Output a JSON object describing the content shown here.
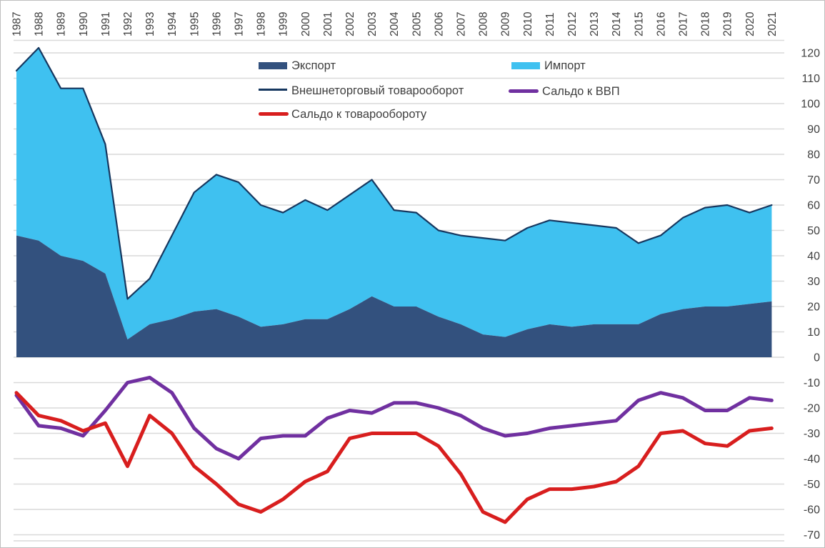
{
  "chart_data": {
    "type": "area",
    "title": "",
    "x": [
      "1987",
      "1988",
      "1989",
      "1990",
      "1991",
      "1992",
      "1993",
      "1994",
      "1995",
      "1996",
      "1997",
      "1998",
      "1999",
      "2000",
      "2001",
      "2002",
      "2003",
      "2004",
      "2005",
      "2006",
      "2007",
      "2008",
      "2009",
      "2010",
      "2011",
      "2012",
      "2013",
      "2014",
      "2015",
      "2016",
      "2017",
      "2018",
      "2019",
      "2020",
      "2021"
    ],
    "series": [
      {
        "name": "Экспорт",
        "type": "area-stacked",
        "color": "#33517e",
        "values": [
          48,
          46,
          40,
          38,
          33,
          7,
          13,
          15,
          18,
          19,
          16,
          12,
          13,
          15,
          15,
          19,
          24,
          20,
          20,
          16,
          13,
          9,
          8,
          11,
          13,
          12,
          13,
          13,
          13,
          17,
          19,
          20,
          20,
          21,
          22
        ]
      },
      {
        "name": "Импорт",
        "type": "area-stacked",
        "color": "#3fc1f0",
        "values": [
          65,
          76,
          66,
          68,
          51,
          16,
          18,
          33,
          47,
          53,
          53,
          48,
          44,
          47,
          43,
          45,
          46,
          38,
          37,
          34,
          35,
          38,
          38,
          40,
          41,
          41,
          39,
          38,
          32,
          31,
          36,
          39,
          40,
          36,
          38
        ]
      },
      {
        "name": "Внешнеторговый товарооборот",
        "type": "line",
        "color": "#16375f",
        "stroke_width": 2.2,
        "values": [
          113,
          122,
          106,
          106,
          84,
          23,
          31,
          48,
          65,
          72,
          69,
          60,
          57,
          62,
          58,
          64,
          70,
          58,
          57,
          50,
          48,
          47,
          46,
          51,
          54,
          53,
          52,
          51,
          45,
          48,
          55,
          59,
          60,
          57,
          60
        ]
      },
      {
        "name": "Сальдо к ВВП",
        "type": "line",
        "color": "#7030a0",
        "stroke_width": 5,
        "values": [
          -15,
          -27,
          -28,
          -31,
          -21,
          -10,
          -8,
          -14,
          -28,
          -36,
          -40,
          -32,
          -31,
          -31,
          -24,
          -21,
          -22,
          -18,
          -18,
          -20,
          -23,
          -28,
          -31,
          -30,
          -28,
          -27,
          -26,
          -25,
          -17,
          -14,
          -16,
          -21,
          -21,
          -16,
          -17
        ]
      },
      {
        "name": "Сальдо к товарообороту",
        "type": "line",
        "color": "#d81e1e",
        "stroke_width": 5,
        "values": [
          -14,
          -23,
          -25,
          -29,
          -26,
          -43,
          -23,
          -30,
          -43,
          -50,
          -58,
          -61,
          -56,
          -49,
          -45,
          -32,
          -30,
          -30,
          -30,
          -35,
          -46,
          -61,
          -65,
          -56,
          -52,
          -52,
          -51,
          -49,
          -43,
          -30,
          -29,
          -34,
          -35,
          -29,
          -28
        ]
      }
    ],
    "xlabel": "",
    "ylabel": "",
    "ylim": [
      -70,
      120
    ],
    "ytick_step": 10,
    "y_ticks": [
      120,
      110,
      100,
      90,
      80,
      70,
      60,
      50,
      40,
      30,
      20,
      10,
      0,
      -10,
      -20,
      -30,
      -40,
      -50,
      -60,
      -70
    ],
    "grid": true,
    "gridline_color": "#d9d9d9",
    "axis_label_color": "#404040",
    "legend_position": "top-center",
    "x_labels_position": "top-rotated-90"
  },
  "legend": {
    "export_label": "Экспорт",
    "import_label": "Импорт",
    "turnover_label": "Внешнеторговый товарооборот",
    "balance_gdp_label": "Сальдо к ВВП",
    "balance_turnover_label": "Сальдо к товарообороту"
  },
  "colors": {
    "export_fill": "#33517e",
    "import_fill": "#3fc1f0",
    "turnover_line": "#16375f",
    "balance_gdp_line": "#7030a0",
    "balance_turnover_line": "#d81e1e",
    "gridline": "#d9d9d9",
    "axis_text": "#404040",
    "figure_border": "#bfbfbf"
  }
}
